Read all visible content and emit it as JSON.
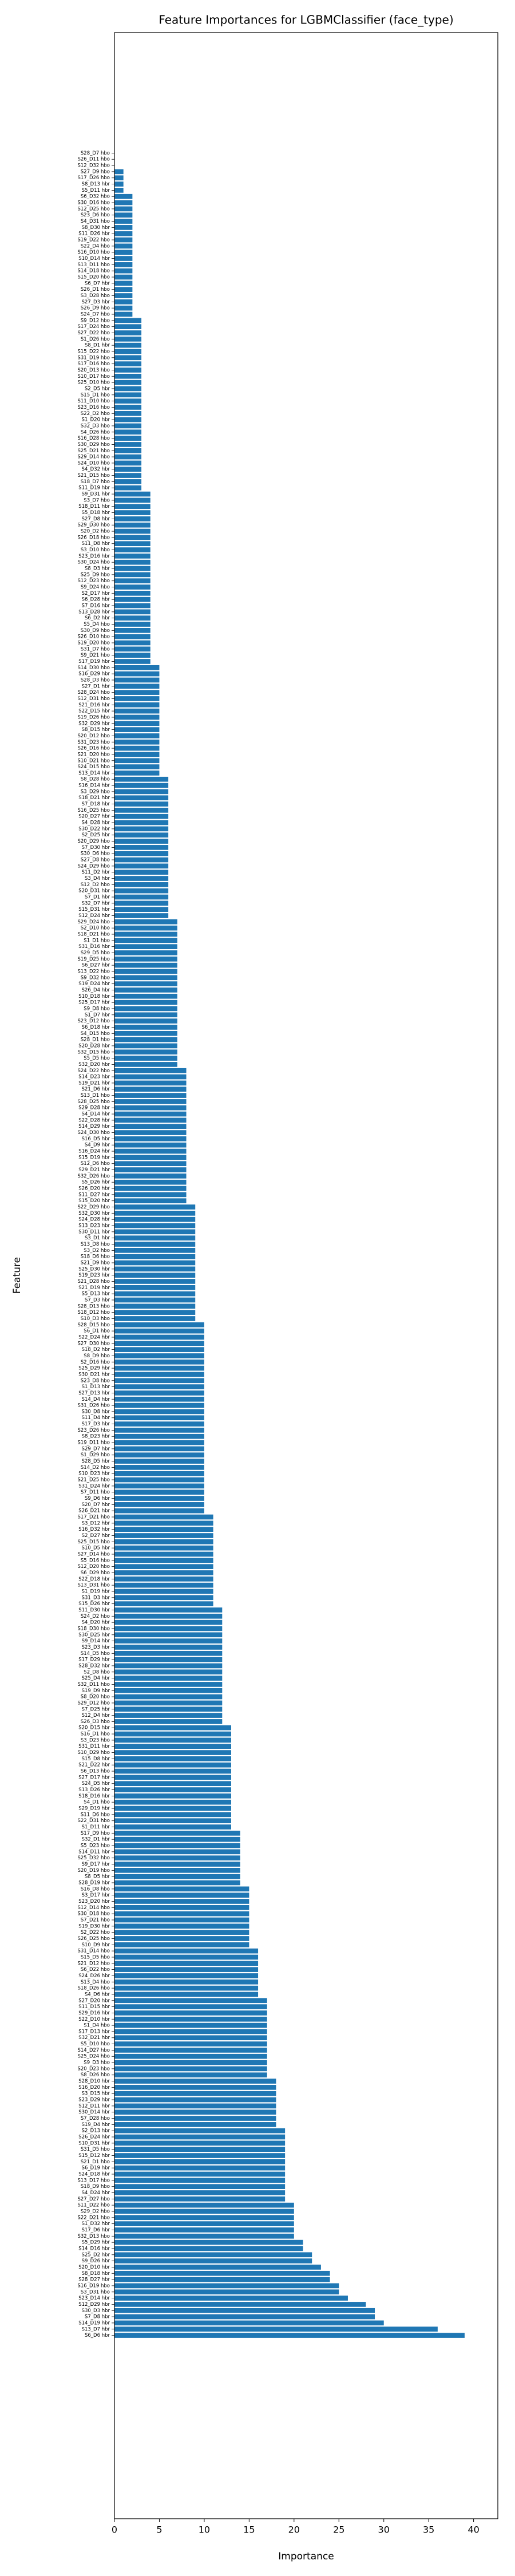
{
  "chart_data": {
    "type": "barh",
    "title": "Feature Importances for LGBMClassifier (face_type)",
    "xlabel": "Importance",
    "ylabel": "Feature",
    "color": "#1f77b4",
    "xlim": [
      0,
      42.7
    ],
    "xticks": [
      0,
      5,
      10,
      15,
      20,
      25,
      30,
      35,
      40
    ],
    "categories": [
      "S28_D7 hbo",
      "S26_D11 hbo",
      "S12_D32 hbo",
      "S27_D9 hbo",
      "S17_D26 hbo",
      "S8_D13 hbr",
      "S5_D11 hbr",
      "S6_D32 hbo",
      "S30_D16 hbo",
      "S12_D25 hbo",
      "S23_D6 hbo",
      "S4_D31 hbo",
      "S8_D30 hbr",
      "S11_D26 hbr",
      "S19_D22 hbo",
      "S22_D4 hbo",
      "S16_D10 hbo",
      "S10_D14 hbr",
      "S13_D11 hbo",
      "S14_D18 hbo",
      "S15_D20 hbo",
      "S6_D7 hbr",
      "S26_D1 hbo",
      "S3_D28 hbo",
      "S27_D3 hbr",
      "S26_D9 hbo",
      "S24_D7 hbo",
      "S9_D12 hbo",
      "S17_D24 hbo",
      "S27_D22 hbo",
      "S1_D26 hbo",
      "S8_D1 hbr",
      "S15_D22 hbo",
      "S31_D19 hbo",
      "S17_D16 hbo",
      "S20_D13 hbo",
      "S10_D17 hbo",
      "S25_D10 hbo",
      "S2_D5 hbr",
      "S15_D1 hbo",
      "S11_D10 hbo",
      "S23_D16 hbo",
      "S22_D2 hbo",
      "S1_D20 hbr",
      "S32_D3 hbo",
      "S4_D26 hbo",
      "S16_D28 hbo",
      "S30_D29 hbo",
      "S25_D21 hbo",
      "S29_D14 hbo",
      "S24_D10 hbo",
      "S4_D32 hbr",
      "S21_D15 hbo",
      "S18_D7 hbo",
      "S11_D19 hbr",
      "S9_D31 hbr",
      "S3_D7 hbo",
      "S18_D11 hbr",
      "S5_D18 hbr",
      "S27_D8 hbr",
      "S29_D30 hbo",
      "S20_D2 hbo",
      "S26_D18 hbo",
      "S11_D8 hbr",
      "S3_D10 hbo",
      "S23_D16 hbr",
      "S30_D24 hbo",
      "S8_D3 hbr",
      "S25_D9 hbo",
      "S12_D23 hbo",
      "S9_D24 hbo",
      "S2_D17 hbr",
      "S6_D28 hbr",
      "S7_D16 hbr",
      "S13_D28 hbr",
      "S6_D2 hbr",
      "S5_D4 hbo",
      "S30_D9 hbo",
      "S26_D10 hbo",
      "S19_D20 hbo",
      "S31_D7 hbo",
      "S9_D21 hbo",
      "S17_D19 hbr",
      "S14_D30 hbo",
      "S16_D29 hbr",
      "S28_D3 hbo",
      "S27_D1 hbr",
      "S28_D24 hbo",
      "S12_D31 hbo",
      "S21_D16 hbr",
      "S22_D15 hbr",
      "S19_D26 hbo",
      "S32_D29 hbr",
      "S8_D15 hbr",
      "S20_D12 hbo",
      "S31_D23 hbo",
      "S26_D16 hbo",
      "S21_D20 hbo",
      "S10_D21 hbo",
      "S24_D15 hbo",
      "S13_D14 hbr",
      "S8_D28 hbo",
      "S16_D14 hbr",
      "S3_D29 hbo",
      "S18_D21 hbr",
      "S7_D18 hbr",
      "S16_D25 hbo",
      "S20_D27 hbr",
      "S4_D28 hbr",
      "S30_D22 hbr",
      "S2_D25 hbr",
      "S20_D29 hbo",
      "S7_D30 hbr",
      "S30_D6 hbo",
      "S27_D8 hbo",
      "S24_D29 hbo",
      "S11_D2 hbr",
      "S3_D4 hbr",
      "S12_D2 hbo",
      "S20_D31 hbr",
      "S7_D1 hbr",
      "S32_D7 hbr",
      "S15_D31 hbr",
      "S12_D24 hbr",
      "S29_D24 hbo",
      "S2_D10 hbo",
      "S18_D21 hbo",
      "S1_D1 hbo",
      "S31_D16 hbr",
      "S29_D5 hbo",
      "S19_D25 hbo",
      "S6_D27 hbr",
      "S13_D22 hbo",
      "S9_D32 hbo",
      "S19_D24 hbr",
      "S26_D4 hbr",
      "S10_D18 hbr",
      "S25_D17 hbr",
      "S9_D8 hbo",
      "S1_D7 hbr",
      "S23_D12 hbo",
      "S6_D18 hbr",
      "S4_D15 hbo",
      "S28_D1 hbo",
      "S20_D28 hbr",
      "S32_D15 hbo",
      "S5_D5 hbo",
      "S32_D20 hbr",
      "S24_D22 hbo",
      "S14_D23 hbr",
      "S19_D21 hbr",
      "S21_D6 hbr",
      "S13_D1 hbo",
      "S28_D25 hbo",
      "S29_D28 hbr",
      "S4_D14 hbr",
      "S22_D28 hbr",
      "S14_D29 hbr",
      "S24_D30 hbo",
      "S16_D5 hbr",
      "S4_D9 hbr",
      "S16_D24 hbr",
      "S15_D19 hbr",
      "S12_D6 hbo",
      "S29_D21 hbr",
      "S32_D26 hbo",
      "S5_D26 hbr",
      "S26_D20 hbr",
      "S11_D27 hbr",
      "S15_D20 hbr",
      "S22_D29 hbo",
      "S32_D30 hbr",
      "S24_D28 hbr",
      "S13_D23 hbr",
      "S30_D11 hbr",
      "S3_D1 hbr",
      "S13_D8 hbo",
      "S3_D2 hbo",
      "S18_D6 hbo",
      "S21_D9 hbo",
      "S25_D30 hbr",
      "S19_D23 hbr",
      "S21_D28 hbo",
      "S21_D19 hbr",
      "S5_D13 hbr",
      "S7_D3 hbr",
      "S28_D13 hbo",
      "S18_D12 hbo",
      "S10_D3 hbo",
      "S28_D15 hbo",
      "S6_D1 hbo",
      "S22_D24 hbr",
      "S27_D30 hbo",
      "S18_D2 hbr",
      "S8_D9 hbo",
      "S2_D16 hbo",
      "S25_D29 hbr",
      "S30_D21 hbr",
      "S23_D8 hbo",
      "S1_D13 hbr",
      "S27_D13 hbr",
      "S14_D4 hbr",
      "S31_D26 hbo",
      "S30_D8 hbr",
      "S11_D4 hbr",
      "S17_D3 hbr",
      "S23_D26 hbo",
      "S8_D23 hbr",
      "S19_D11 hbo",
      "S29_D7 hbr",
      "S1_D29 hbo",
      "S28_D5 hbr",
      "S14_D2 hbo",
      "S10_D23 hbr",
      "S21_D25 hbo",
      "S31_D24 hbr",
      "S7_D11 hbo",
      "S9_D6 hbr",
      "S20_D7 hbr",
      "S26_D21 hbr",
      "S17_D21 hbo",
      "S3_D12 hbr",
      "S16_D32 hbr",
      "S2_D27 hbr",
      "S25_D15 hbo",
      "S10_D5 hbr",
      "S27_D14 hbo",
      "S5_D16 hbo",
      "S12_D20 hbo",
      "S6_D29 hbo",
      "S22_D18 hbr",
      "S13_D31 hbo",
      "S1_D19 hbr",
      "S31_D3 hbr",
      "S15_D26 hbr",
      "S11_D30 hbr",
      "S24_D2 hbo",
      "S4_D20 hbr",
      "S18_D30 hbo",
      "S30_D25 hbr",
      "S9_D14 hbr",
      "S23_D3 hbr",
      "S14_D5 hbo",
      "S17_D29 hbr",
      "S28_D32 hbr",
      "S2_D8 hbo",
      "S25_D4 hbr",
      "S32_D11 hbo",
      "S19_D9 hbr",
      "S8_D20 hbo",
      "S29_D12 hbo",
      "S7_D25 hbr",
      "S12_D4 hbr",
      "S26_D3 hbo",
      "S20_D15 hbr",
      "S16_D1 hbo",
      "S3_D23 hbo",
      "S31_D11 hbr",
      "S10_D29 hbo",
      "S15_D8 hbr",
      "S21_D22 hbr",
      "S6_D13 hbo",
      "S27_D17 hbr",
      "S24_D5 hbr",
      "S13_D26 hbr",
      "S18_D16 hbr",
      "S4_D1 hbo",
      "S29_D19 hbr",
      "S11_D6 hbo",
      "S22_D31 hbo",
      "S1_D11 hbr",
      "S17_D9 hbo",
      "S32_D1 hbr",
      "S5_D23 hbo",
      "S14_D11 hbr",
      "S25_D32 hbo",
      "S9_D17 hbr",
      "S20_D19 hbo",
      "S8_D5 hbr",
      "S28_D19 hbr",
      "S16_D8 hbo",
      "S3_D17 hbr",
      "S23_D20 hbr",
      "S12_D14 hbo",
      "S30_D18 hbo",
      "S7_D21 hbo",
      "S19_D30 hbr",
      "S2_D22 hbo",
      "S26_D25 hbo",
      "S10_D9 hbr",
      "S31_D14 hbo",
      "S15_D5 hbo",
      "S21_D12 hbo",
      "S6_D22 hbo",
      "S24_D26 hbr",
      "S13_D4 hbo",
      "S18_D26 hbo",
      "S4_D6 hbr",
      "S27_D20 hbr",
      "S11_D15 hbr",
      "S29_D16 hbr",
      "S22_D10 hbr",
      "S1_D4 hbo",
      "S17_D13 hbr",
      "S32_D21 hbr",
      "S5_D10 hbo",
      "S14_D27 hbo",
      "S25_D24 hbo",
      "S9_D3 hbo",
      "S20_D23 hbo",
      "S8_D26 hbo",
      "S28_D10 hbr",
      "S16_D20 hbr",
      "S3_D15 hbr",
      "S23_D29 hbr",
      "S12_D11 hbr",
      "S30_D14 hbr",
      "S7_D28 hbo",
      "S19_D4 hbr",
      "S2_D13 hbr",
      "S26_D24 hbr",
      "S10_D31 hbr",
      "S31_D5 hbo",
      "S15_D12 hbr",
      "S21_D1 hbo",
      "S6_D19 hbr",
      "S24_D18 hbr",
      "S13_D17 hbo",
      "S18_D9 hbo",
      "S4_D24 hbr",
      "S27_D27 hbo",
      "S11_D22 hbo",
      "S29_D2 hbo",
      "S22_D21 hbo",
      "S1_D32 hbr",
      "S17_D6 hbr",
      "S32_D13 hbo",
      "S5_D29 hbr",
      "S14_D16 hbr",
      "S25_D2 hbr",
      "S9_D26 hbr",
      "S20_D10 hbr",
      "S8_D18 hbr",
      "S28_D27 hbr",
      "S16_D19 hbo",
      "S3_D31 hbo",
      "S23_D14 hbr",
      "S12_D29 hbr",
      "S30_D3 hbr",
      "S7_D8 hbr",
      "S14_D19 hbr",
      "S13_D7 hbr",
      "S6_D6 hbr"
    ],
    "values": [
      0,
      0,
      0,
      1,
      1,
      1,
      1,
      2,
      2,
      2,
      2,
      2,
      2,
      2,
      2,
      2,
      2,
      2,
      2,
      2,
      2,
      2,
      2,
      2,
      2,
      2,
      2,
      3,
      3,
      3,
      3,
      3,
      3,
      3,
      3,
      3,
      3,
      3,
      3,
      3,
      3,
      3,
      3,
      3,
      3,
      3,
      3,
      3,
      3,
      3,
      3,
      3,
      3,
      3,
      3,
      4,
      4,
      4,
      4,
      4,
      4,
      4,
      4,
      4,
      4,
      4,
      4,
      4,
      4,
      4,
      4,
      4,
      4,
      4,
      4,
      4,
      4,
      4,
      4,
      4,
      4,
      4,
      4,
      5,
      5,
      5,
      5,
      5,
      5,
      5,
      5,
      5,
      5,
      5,
      5,
      5,
      5,
      5,
      5,
      5,
      5,
      6,
      6,
      6,
      6,
      6,
      6,
      6,
      6,
      6,
      6,
      6,
      6,
      6,
      6,
      6,
      6,
      6,
      6,
      6,
      6,
      6,
      6,
      6,
      7,
      7,
      7,
      7,
      7,
      7,
      7,
      7,
      7,
      7,
      7,
      7,
      7,
      7,
      7,
      7,
      7,
      7,
      7,
      7,
      7,
      7,
      7,
      7,
      8,
      8,
      8,
      8,
      8,
      8,
      8,
      8,
      8,
      8,
      8,
      8,
      8,
      8,
      8,
      8,
      8,
      8,
      8,
      8,
      8,
      8,
      9,
      9,
      9,
      9,
      9,
      9,
      9,
      9,
      9,
      9,
      9,
      9,
      9,
      9,
      9,
      9,
      9,
      9,
      9,
      10,
      10,
      10,
      10,
      10,
      10,
      10,
      10,
      10,
      10,
      10,
      10,
      10,
      10,
      10,
      10,
      10,
      10,
      10,
      10,
      10,
      10,
      10,
      10,
      10,
      10,
      10,
      10,
      10,
      10,
      10,
      11,
      11,
      11,
      11,
      11,
      11,
      11,
      11,
      11,
      11,
      11,
      11,
      11,
      11,
      11,
      12,
      12,
      12,
      12,
      12,
      12,
      12,
      12,
      12,
      12,
      12,
      12,
      12,
      12,
      12,
      12,
      12,
      12,
      12,
      13,
      13,
      13,
      13,
      13,
      13,
      13,
      13,
      13,
      13,
      13,
      13,
      13,
      13,
      13,
      13,
      13,
      14,
      14,
      14,
      14,
      14,
      14,
      14,
      14,
      14,
      15,
      15,
      15,
      15,
      15,
      15,
      15,
      15,
      15,
      15,
      16,
      16,
      16,
      16,
      16,
      16,
      16,
      16,
      17,
      17,
      17,
      17,
      17,
      17,
      17,
      17,
      17,
      17,
      17,
      17,
      17,
      18,
      18,
      18,
      18,
      18,
      18,
      18,
      18,
      19,
      19,
      19,
      19,
      19,
      19,
      19,
      19,
      19,
      19,
      19,
      19,
      20,
      20,
      20,
      20,
      20,
      20,
      21,
      21,
      22,
      22,
      23,
      24,
      24,
      25,
      25,
      26,
      28,
      29,
      29,
      30,
      36,
      39
    ]
  }
}
